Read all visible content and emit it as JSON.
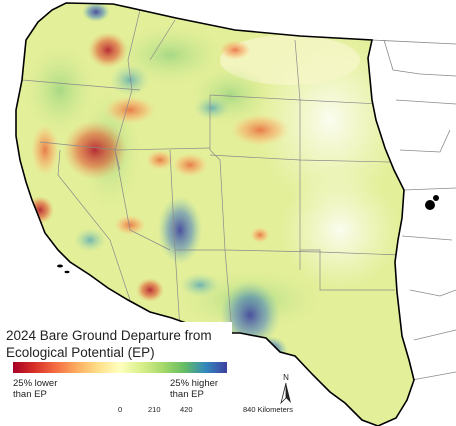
{
  "legend": {
    "title": "2024 Bare Ground Departure from\nEcological Potential (EP)",
    "low_label": "25% lower\nthan EP",
    "high_label": "25% higher\nthan EP",
    "ramp_colors": [
      "#a50026",
      "#d73027",
      "#f46d43",
      "#fdae61",
      "#fee08b",
      "#ffffbf",
      "#d9ef8b",
      "#a6d96a",
      "#66bd63",
      "#3288bd",
      "#3f3fa0"
    ]
  },
  "north_arrow": {
    "label": "N"
  },
  "scale_bar": {
    "ticks": [
      "0",
      "210",
      "420",
      "840 Kilometers"
    ]
  },
  "map": {
    "background": "#ffffff",
    "boundary_color": "#000000",
    "state_line_color": "#8a8a8a",
    "water_color": "#ffffff"
  }
}
